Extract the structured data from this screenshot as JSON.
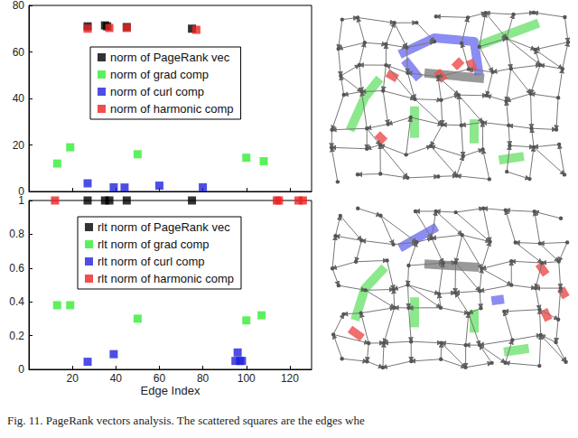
{
  "chart_data": [
    {
      "type": "scatter",
      "marker": "square",
      "legend": "upper right",
      "grid": false,
      "tick_labels": "y",
      "xlim": [
        0,
        130
      ],
      "xticks": [
        20,
        40,
        60,
        80,
        100,
        120
      ],
      "ylim": [
        0,
        80
      ],
      "yticks": [
        0,
        20,
        40,
        60,
        80
      ],
      "series": [
        {
          "name": "norm of PageRank vec",
          "color": "#000000",
          "x": [
            27,
            35,
            36,
            45,
            75
          ],
          "values": [
            71,
            71.4,
            71,
            70.7,
            70
          ]
        },
        {
          "name": "norm of grad comp",
          "color": "#33ee33",
          "x": [
            13,
            19,
            50,
            100,
            108
          ],
          "values": [
            12,
            19,
            16,
            14.5,
            13
          ]
        },
        {
          "name": "norm of curl comp",
          "color": "#2222dd",
          "x": [
            27,
            39,
            44,
            60,
            80
          ],
          "values": [
            3.5,
            1.8,
            1.7,
            2.5,
            1.8
          ]
        },
        {
          "name": "norm of harmonic comp",
          "color": "#ee2222",
          "x": [
            27,
            37,
            45,
            77
          ],
          "values": [
            70,
            70.3,
            70.3,
            69.5
          ]
        }
      ]
    },
    {
      "type": "scatter",
      "marker": "square",
      "legend": "upper right",
      "grid": false,
      "xlabel": "Edge Index",
      "xlim": [
        0,
        130
      ],
      "xticks": [
        20,
        40,
        60,
        80,
        100,
        120
      ],
      "ylim": [
        0,
        1
      ],
      "yticks": [
        0,
        0.2,
        0.4,
        0.6,
        0.8,
        1
      ],
      "series": [
        {
          "name": "rlt norm of PageRank vec",
          "color": "#000000",
          "x": [
            27,
            35,
            37,
            45,
            75
          ],
          "values": [
            1,
            1,
            1,
            1,
            1
          ]
        },
        {
          "name": "rlt norm of grad comp",
          "color": "#33ee33",
          "x": [
            13,
            19,
            50,
            100,
            107
          ],
          "values": [
            0.38,
            0.38,
            0.3,
            0.29,
            0.32
          ]
        },
        {
          "name": "rlt norm of curl comp",
          "color": "#2222dd",
          "x": [
            27,
            39,
            95,
            96,
            97,
            98
          ],
          "values": [
            0.045,
            0.09,
            0.05,
            0.1,
            0.05,
            0.05
          ]
        },
        {
          "name": "rlt norm of harmonic comp",
          "color": "#ee2222",
          "x": [
            12,
            114,
            115,
            124,
            126
          ],
          "values": [
            1,
            1,
            1,
            1,
            1
          ]
        }
      ]
    }
  ],
  "caption": "Fig. 11. PageRank vectors analysis. The scattered squares are the edges whe"
}
